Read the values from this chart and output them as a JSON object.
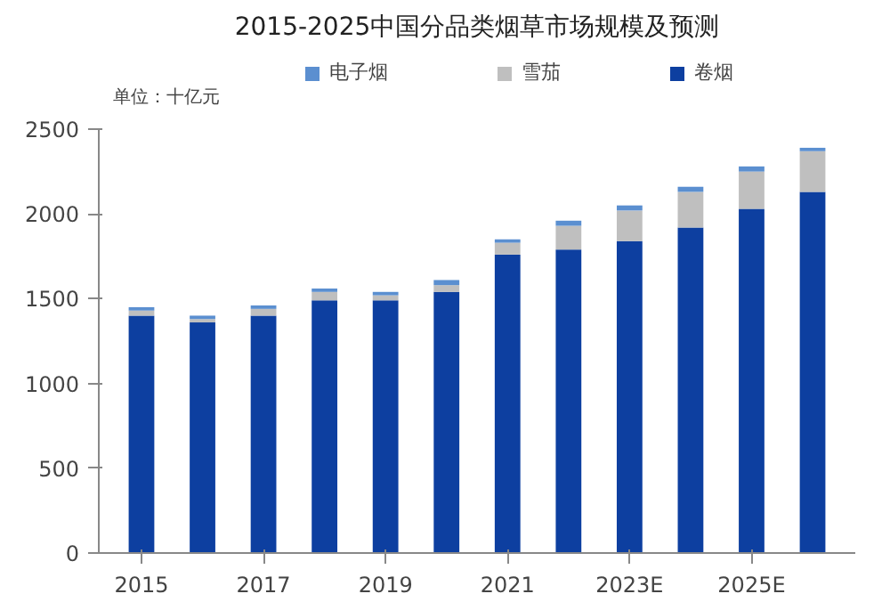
{
  "chart_data": {
    "type": "bar",
    "title": "2015-2025中国分品类烟草市场规模及预测",
    "stacked": true,
    "categories": [
      "2015",
      null,
      "2017",
      null,
      "2019",
      null,
      "2021",
      null,
      "2023E",
      null,
      "2025E",
      null
    ],
    "series": [
      {
        "name": "卷烟",
        "color": "#0d3fa0",
        "values": [
          1400,
          1360,
          1400,
          1490,
          1490,
          1540,
          1760,
          1790,
          1840,
          1920,
          2030,
          2130
        ]
      },
      {
        "name": "雪茄",
        "color": "#bfbfbf",
        "values": [
          30,
          20,
          40,
          50,
          30,
          40,
          70,
          140,
          180,
          210,
          220,
          240
        ]
      },
      {
        "name": "电子烟",
        "color": "#5b8fd0",
        "values": [
          20,
          20,
          20,
          20,
          20,
          30,
          20,
          30,
          30,
          30,
          30,
          20
        ]
      }
    ],
    "ylim": [
      0,
      2500
    ],
    "yticks": [
      0,
      500,
      1000,
      1500,
      2000,
      2500
    ],
    "grid": false,
    "legend": "top",
    "annotations": [
      "单位：十亿元"
    ]
  }
}
